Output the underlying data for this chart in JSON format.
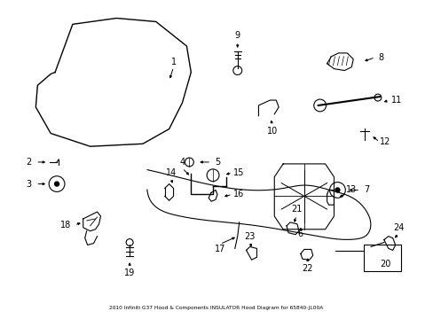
{
  "title": "2010 Infiniti G37 Hood & Components INSULATOR Hood Diagram for 65840-JL00A",
  "bg": "#ffffff",
  "fg": "#000000",
  "figsize": [
    4.89,
    3.6
  ],
  "dpi": 100
}
